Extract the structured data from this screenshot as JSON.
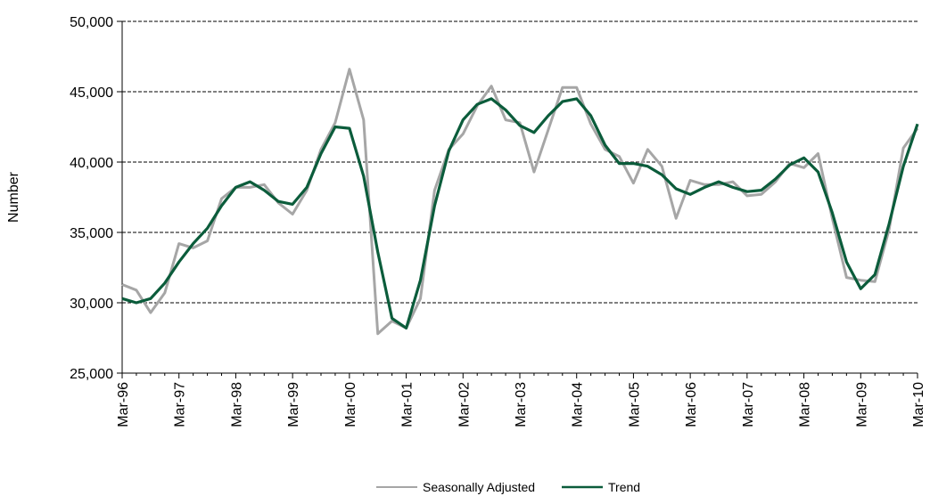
{
  "chart_data": {
    "type": "line",
    "xlabel": "",
    "ylabel": "Number",
    "ylim": [
      25000,
      50000
    ],
    "y_ticks": [
      25000,
      30000,
      35000,
      40000,
      45000,
      50000
    ],
    "y_tick_labels": [
      "25,000",
      "30,000",
      "35,000",
      "40,000",
      "45,000",
      "50,000"
    ],
    "x_tick_labels": [
      "Mar-96",
      "Mar-97",
      "Mar-98",
      "Mar-99",
      "Mar-00",
      "Mar-01",
      "Mar-02",
      "Mar-03",
      "Mar-04",
      "Mar-05",
      "Mar-06",
      "Mar-07",
      "Mar-08",
      "Mar-09",
      "Mar-10"
    ],
    "x_start": "Mar-96",
    "x_end": "Mar-10",
    "frequency": "quarterly",
    "grid": "horizontal dashed",
    "legend_position": "bottom-center",
    "series": [
      {
        "name": "Seasonally Adjusted",
        "color": "#a6a6a6",
        "values": [
          31300,
          30900,
          29300,
          30700,
          34200,
          33900,
          34400,
          37400,
          38200,
          38200,
          38400,
          37100,
          36300,
          38000,
          40900,
          42800,
          46600,
          43000,
          27800,
          28700,
          28200,
          30300,
          38000,
          40900,
          42000,
          44000,
          45400,
          43000,
          42800,
          39300,
          42300,
          45300,
          45300,
          42700,
          40900,
          40400,
          38500,
          40900,
          39700,
          36000,
          38700,
          38400,
          38400,
          38600,
          37600,
          37700,
          38600,
          39900,
          39600,
          40600,
          36000,
          31800,
          31600,
          31500,
          35200,
          41000,
          42400
        ]
      },
      {
        "name": "Trend",
        "color": "#0b5c3b",
        "values": [
          30300,
          30000,
          30300,
          31400,
          32900,
          34200,
          35300,
          36900,
          38200,
          38600,
          38000,
          37200,
          37000,
          38200,
          40600,
          42500,
          42400,
          39000,
          33600,
          28900,
          28200,
          31600,
          36900,
          40800,
          43000,
          44100,
          44500,
          43700,
          42600,
          42100,
          43300,
          44300,
          44500,
          43300,
          41200,
          39900,
          39900,
          39700,
          39100,
          38100,
          37700,
          38200,
          38600,
          38200,
          37900,
          38000,
          38800,
          39800,
          40300,
          39300,
          36400,
          32900,
          31000,
          32000,
          35600,
          39700,
          42700
        ]
      }
    ]
  }
}
